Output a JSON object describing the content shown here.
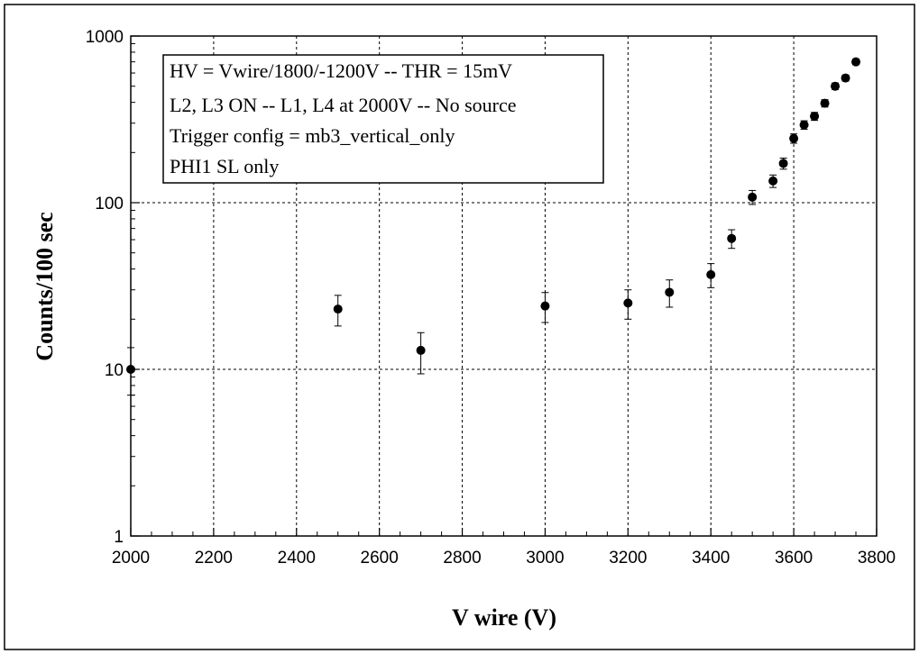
{
  "chart_data": {
    "type": "scatter",
    "title": "",
    "xlabel": "V wire (V)",
    "ylabel": "Counts/100 sec",
    "xlim": [
      2000,
      3800
    ],
    "ylim": [
      1,
      1000
    ],
    "y_scale": "log",
    "x_ticks": [
      2000,
      2200,
      2400,
      2600,
      2800,
      3000,
      3200,
      3400,
      3600,
      3800
    ],
    "y_ticks": [
      1,
      10,
      100,
      1000
    ],
    "y_tick_labels": [
      "1",
      "10",
      "100",
      "1000"
    ],
    "grid": true,
    "legend_placement": "top-left",
    "annotation_lines": [
      "HV = Vwire/1800/-1200V -- THR = 15mV",
      "L2, L3 ON -- L1, L4 at 2000V -- No source",
      "Trigger config =  mb3_vertical_only",
      "PHI1 SL only"
    ],
    "series": [
      {
        "marker_color": "#000000",
        "points": [
          {
            "x": 2000,
            "y": 10,
            "err_lo": 3,
            "err_hi": 3.5
          },
          {
            "x": 2500,
            "y": 23,
            "err_lo": 4.8,
            "err_hi": 4.8
          },
          {
            "x": 2700,
            "y": 13,
            "err_lo": 3.6,
            "err_hi": 3.6
          },
          {
            "x": 3000,
            "y": 24,
            "err_lo": 4.9,
            "err_hi": 4.9
          },
          {
            "x": 3200,
            "y": 25,
            "err_lo": 5,
            "err_hi": 5
          },
          {
            "x": 3300,
            "y": 29,
            "err_lo": 5.4,
            "err_hi": 5.4
          },
          {
            "x": 3400,
            "y": 37,
            "err_lo": 6.1,
            "err_hi": 6.1
          },
          {
            "x": 3450,
            "y": 61,
            "err_lo": 7.8,
            "err_hi": 7.8
          },
          {
            "x": 3500,
            "y": 108,
            "err_lo": 10.4,
            "err_hi": 10.4
          },
          {
            "x": 3550,
            "y": 135,
            "err_lo": 11.6,
            "err_hi": 11.6
          },
          {
            "x": 3575,
            "y": 172,
            "err_lo": 13.1,
            "err_hi": 13.1
          },
          {
            "x": 3600,
            "y": 243,
            "err_lo": 15.6,
            "err_hi": 15.6
          },
          {
            "x": 3625,
            "y": 293,
            "err_lo": 17.1,
            "err_hi": 17.1
          },
          {
            "x": 3650,
            "y": 330,
            "err_lo": 18.2,
            "err_hi": 18.2
          },
          {
            "x": 3675,
            "y": 395,
            "err_lo": 19.9,
            "err_hi": 19.9
          },
          {
            "x": 3700,
            "y": 500,
            "err_lo": 22.4,
            "err_hi": 22.4
          },
          {
            "x": 3725,
            "y": 560,
            "err_lo": 23.7,
            "err_hi": 23.7
          },
          {
            "x": 3750,
            "y": 700,
            "err_lo": 26.5,
            "err_hi": 26.5
          }
        ]
      }
    ]
  }
}
